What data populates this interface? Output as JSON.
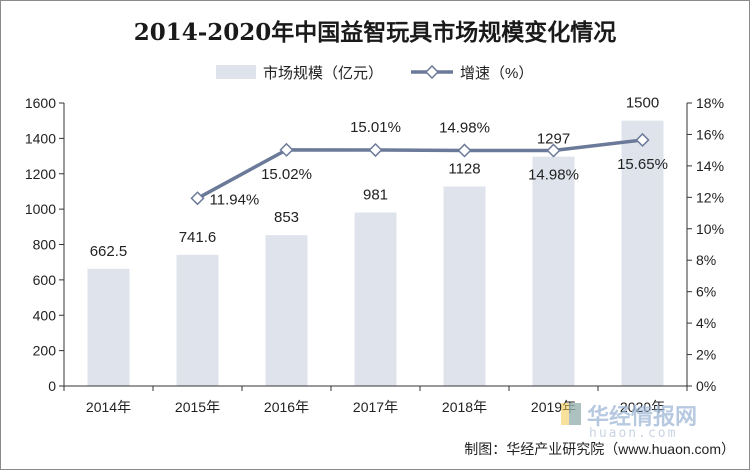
{
  "chart_data": {
    "type": "bar",
    "title": "2014-2020年中国益智玩具市场规模变化情况",
    "categories": [
      "2014年",
      "2015年",
      "2016年",
      "2017年",
      "2018年",
      "2019年",
      "2020年"
    ],
    "series": [
      {
        "name": "市场规模（亿元）",
        "type": "bar",
        "axis": "left",
        "values": [
          662.5,
          741.6,
          853,
          981,
          1128,
          1297,
          1500
        ],
        "labels": [
          "662.5",
          "741.6",
          "853",
          "981",
          "1128",
          "1297",
          "1500"
        ],
        "color": "#dfe3ec"
      },
      {
        "name": "增速（%）",
        "type": "line",
        "axis": "right",
        "values": [
          null,
          11.94,
          15.02,
          15.01,
          14.98,
          14.98,
          15.65
        ],
        "labels": [
          "",
          "11.94%",
          "15.02%",
          "15.01%",
          "14.98%",
          "14.98%",
          "15.65%"
        ],
        "color": "#6b7a99"
      }
    ],
    "y_left": {
      "min": 0,
      "max": 1600,
      "ticks": [
        "0",
        "200",
        "400",
        "600",
        "800",
        "1000",
        "1200",
        "1400",
        "1600"
      ]
    },
    "y_right": {
      "min": 0,
      "max": 18,
      "ticks": [
        "0%",
        "2%",
        "4%",
        "6%",
        "8%",
        "10%",
        "12%",
        "14%",
        "16%",
        "18%"
      ]
    },
    "legend_position": "top-center",
    "grid": false
  },
  "footer": {
    "credit": "制图：华经产业研究院（www.huaon.com）"
  },
  "watermark": {
    "name": "华经情报网",
    "url": "huaon.com"
  }
}
